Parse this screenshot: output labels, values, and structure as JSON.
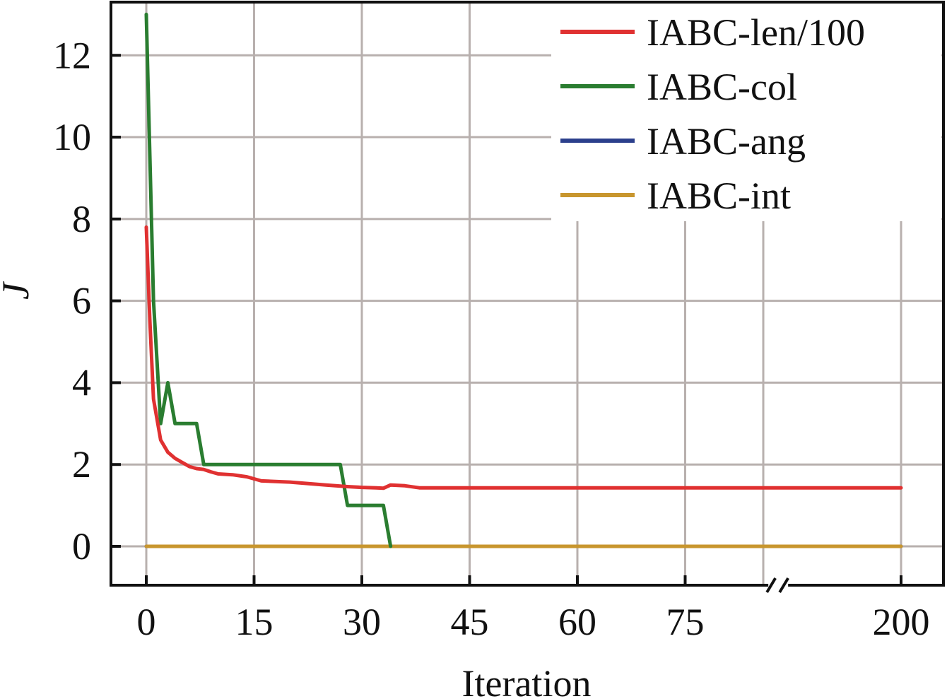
{
  "chart_data": {
    "type": "line",
    "title": "",
    "xlabel": "Iteration",
    "ylabel": "J",
    "xlim": [
      -3.3,
      203
    ],
    "ylim": [
      -0.95,
      13.3
    ],
    "x_axis_break": {
      "between": 85,
      "and": 195
    },
    "xticks": [
      {
        "value": 0,
        "label": "0"
      },
      {
        "value": 15,
        "label": "15"
      },
      {
        "value": 30,
        "label": "30"
      },
      {
        "value": 45,
        "label": "45"
      },
      {
        "value": 60,
        "label": "60"
      },
      {
        "value": 75,
        "label": "75"
      },
      {
        "value": 200,
        "label": "200"
      }
    ],
    "vertical_gridlines": [
      0,
      15,
      30,
      45,
      60,
      75,
      90,
      200
    ],
    "yticks": [
      0,
      2,
      4,
      6,
      8,
      10,
      12
    ],
    "grid": true,
    "legend_position": "top-right",
    "series": [
      {
        "name": "IABC-len/100",
        "color": "#e03131",
        "x": [
          0,
          0.5,
          1,
          2,
          3,
          4,
          5,
          6,
          7,
          8,
          9,
          10,
          12,
          14,
          16,
          20,
          25,
          28,
          30,
          32,
          33,
          34,
          36,
          38,
          40,
          60,
          80,
          200
        ],
        "y": [
          7.8,
          5.5,
          3.6,
          2.6,
          2.3,
          2.15,
          2.05,
          1.95,
          1.9,
          1.88,
          1.82,
          1.77,
          1.75,
          1.7,
          1.6,
          1.57,
          1.5,
          1.46,
          1.44,
          1.43,
          1.42,
          1.5,
          1.48,
          1.43,
          1.43,
          1.43,
          1.43,
          1.43
        ]
      },
      {
        "name": "IABC-col",
        "color": "#2a7d30",
        "x": [
          0,
          1,
          2,
          3,
          4,
          7,
          8,
          9,
          27,
          28,
          33,
          34
        ],
        "y": [
          13,
          6,
          3,
          4,
          3,
          3,
          2,
          2,
          2,
          1,
          1,
          0
        ]
      },
      {
        "name": "IABC-ang",
        "color": "#2b3f8c",
        "x": [
          0,
          200
        ],
        "y": [
          0,
          0
        ]
      },
      {
        "name": "IABC-int",
        "color": "#c8962e",
        "x": [
          0,
          200
        ],
        "y": [
          0,
          0
        ]
      }
    ]
  }
}
